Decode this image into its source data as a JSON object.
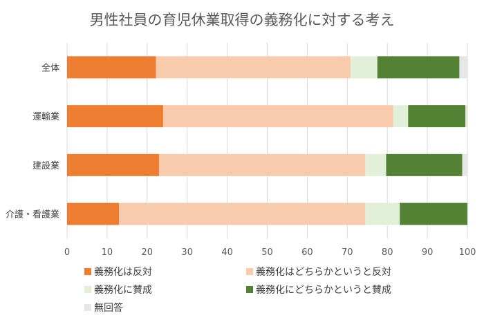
{
  "chart_data": {
    "type": "bar",
    "orientation": "horizontal",
    "stacked": true,
    "title": "男性社員の育児休業取得の義務化に対する考え",
    "categories": [
      "全体",
      "運輸業",
      "建設業",
      "介護・看護業"
    ],
    "series": [
      {
        "name": "義務化は反対",
        "color": "#ED7D31",
        "values": [
          22.2,
          24.0,
          23.0,
          13.0
        ]
      },
      {
        "name": "義務化はどちらかというと反対",
        "color": "#F8CBAD",
        "values": [
          48.6,
          57.5,
          51.5,
          61.5
        ]
      },
      {
        "name": "義務化に賛成",
        "color": "#E2F0D9",
        "values": [
          6.7,
          3.7,
          5.2,
          8.6
        ]
      },
      {
        "name": "義務化にどちらかというと賛成",
        "color": "#548235",
        "values": [
          20.5,
          14.3,
          19.0,
          16.9
        ]
      },
      {
        "name": "無回答",
        "color": "#E7E6E6",
        "values": [
          2.0,
          0.5,
          1.3,
          0.0
        ]
      }
    ],
    "xlim": [
      0,
      100
    ],
    "xticks": [
      0,
      10,
      20,
      30,
      40,
      50,
      60,
      70,
      80,
      90,
      100
    ],
    "grid": true,
    "legend_position": "bottom"
  }
}
